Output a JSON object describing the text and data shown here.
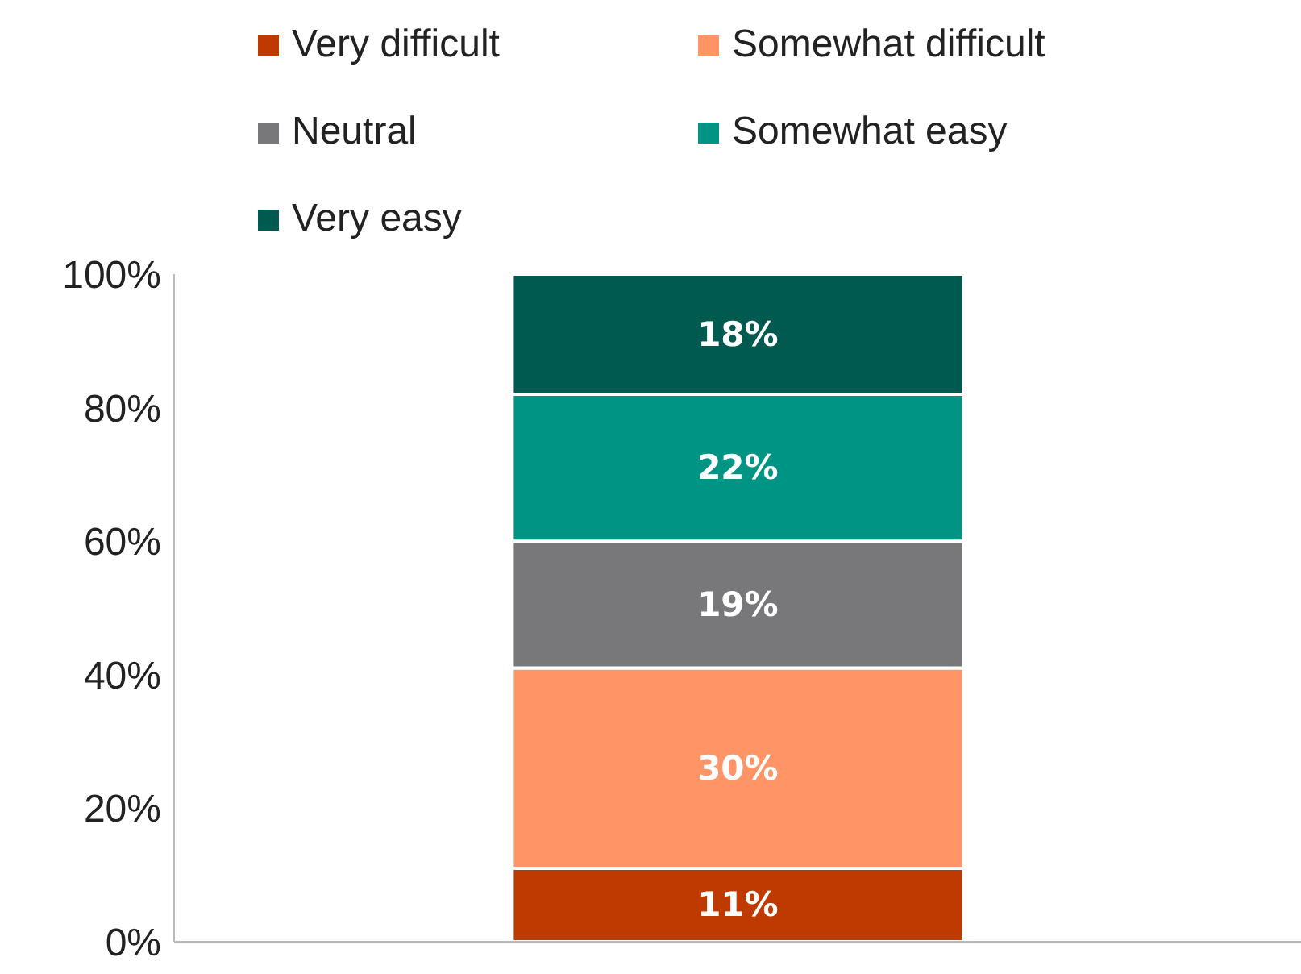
{
  "chart_data": {
    "type": "bar",
    "stacked": true,
    "categories": [
      null
    ],
    "series": [
      {
        "name": "Very difficult",
        "color": "#bf3a00",
        "values": [
          11
        ],
        "value_labels": [
          "11%"
        ]
      },
      {
        "name": "Somewhat difficult",
        "color": "#ff9466",
        "values": [
          30
        ],
        "value_labels": [
          "30%"
        ]
      },
      {
        "name": "Neutral",
        "color": "#78787a",
        "values": [
          19
        ],
        "value_labels": [
          "19%"
        ]
      },
      {
        "name": "Somewhat easy",
        "color": "#009485",
        "values": [
          22
        ],
        "value_labels": [
          "22%"
        ]
      },
      {
        "name": "Very easy",
        "color": "#005a4f",
        "values": [
          18
        ],
        "value_labels": [
          "18%"
        ]
      }
    ],
    "ylim": [
      0,
      100
    ],
    "yticks": [
      {
        "value": 0,
        "label": "0%"
      },
      {
        "value": 20,
        "label": "20%"
      },
      {
        "value": 40,
        "label": "40%"
      },
      {
        "value": 60,
        "label": "60%"
      },
      {
        "value": 80,
        "label": "80%"
      },
      {
        "value": 100,
        "label": "100%"
      }
    ],
    "grid": false,
    "legend": "top"
  }
}
